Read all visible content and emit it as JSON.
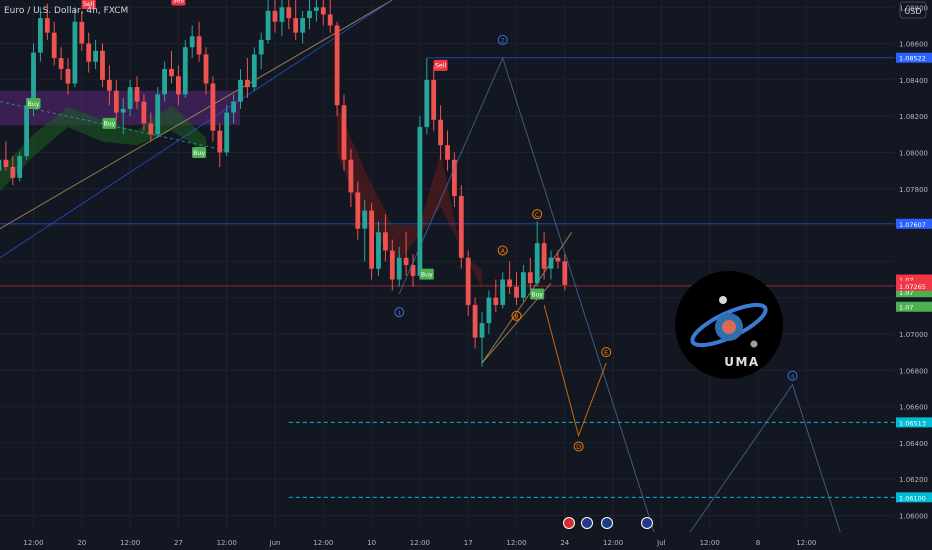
{
  "header": {
    "symbol": "Euro / U.S. Dollar, 4h, FXCM",
    "currency": "USD"
  },
  "colors": {
    "bg": "#131722",
    "up": "#26a69a",
    "down": "#ef5350",
    "wave_blue": "#2962ff",
    "wave_orange": "#f57c00",
    "buy": "#4caf50",
    "sell": "#f23645",
    "purple_zone": "#6a2c8e"
  },
  "chart_data": {
    "type": "candlestick",
    "title": "",
    "xlabel": "",
    "ylabel": "",
    "ylim": [
      1.0592,
      1.0884
    ],
    "y_ticks": [
      1.088,
      1.086,
      1.084,
      1.082,
      1.08,
      1.078,
      1.076,
      1.074,
      1.072,
      1.07,
      1.068,
      1.066,
      1.064,
      1.062,
      1.06
    ],
    "y_tick_labels": [
      "1.08800",
      "1.08600",
      "1.08400",
      "1.08200",
      "1.08000",
      "1.07800",
      "",
      "",
      "",
      "1.07000",
      "1.06800",
      "1.06600",
      "1.06400",
      "1.06200",
      "1.06000"
    ],
    "x_ticks": [
      {
        "i": 5,
        "label": "12:00"
      },
      {
        "i": 12,
        "label": "20"
      },
      {
        "i": 19,
        "label": "12:00"
      },
      {
        "i": 26,
        "label": "27"
      },
      {
        "i": 33,
        "label": "12:00"
      },
      {
        "i": 40,
        "label": "Jun"
      },
      {
        "i": 47,
        "label": "12:00"
      },
      {
        "i": 54,
        "label": "10"
      },
      {
        "i": 61,
        "label": "12:00"
      },
      {
        "i": 68,
        "label": "17"
      },
      {
        "i": 75,
        "label": "12:00"
      },
      {
        "i": 82,
        "label": "24"
      },
      {
        "i": 89,
        "label": "12:00"
      },
      {
        "i": 96,
        "label": "Jul"
      },
      {
        "i": 103,
        "label": "12:00"
      },
      {
        "i": 110,
        "label": "8"
      },
      {
        "i": 117,
        "label": "12:00"
      }
    ],
    "price_tags": [
      {
        "value": 1.08522,
        "label": "1.08522",
        "color": "#2962ff"
      },
      {
        "value": 1.07607,
        "label": "1.07607",
        "color": "#2962ff"
      },
      {
        "value": 1.073,
        "label": "1.07",
        "color": "#f23645"
      },
      {
        "value": 1.0723,
        "label": "1.07",
        "color": "#4caf50"
      },
      {
        "value": 1.07265,
        "label": "1.07265",
        "color": "#f23645"
      },
      {
        "value": 1.0715,
        "label": "1.07",
        "color": "#4caf50"
      },
      {
        "value": 1.06513,
        "label": "1.06513",
        "color": "#00bcd4"
      },
      {
        "value": 1.061,
        "label": "1.06100",
        "color": "#00bcd4"
      }
    ],
    "candles": [
      [
        1.079,
        1.08,
        1.0782,
        1.0796
      ],
      [
        1.0796,
        1.0806,
        1.079,
        1.0792
      ],
      [
        1.0792,
        1.0798,
        1.0782,
        1.0786
      ],
      [
        1.0786,
        1.08,
        1.0784,
        1.0798
      ],
      [
        1.0798,
        1.083,
        1.0796,
        1.0826
      ],
      [
        1.0826,
        1.086,
        1.082,
        1.0855
      ],
      [
        1.0855,
        1.088,
        1.085,
        1.0874
      ],
      [
        1.0874,
        1.0882,
        1.0862,
        1.0866
      ],
      [
        1.0866,
        1.0872,
        1.0848,
        1.0852
      ],
      [
        1.0852,
        1.0858,
        1.084,
        1.0846
      ],
      [
        1.0846,
        1.0852,
        1.0832,
        1.0838
      ],
      [
        1.0838,
        1.088,
        1.0836,
        1.0872
      ],
      [
        1.0872,
        1.0878,
        1.0856,
        1.086
      ],
      [
        1.086,
        1.0866,
        1.0844,
        1.085
      ],
      [
        1.085,
        1.0862,
        1.0846,
        1.0856
      ],
      [
        1.0856,
        1.086,
        1.0836,
        1.084
      ],
      [
        1.084,
        1.0848,
        1.0826,
        1.0834
      ],
      [
        1.0834,
        1.084,
        1.0818,
        1.0822
      ],
      [
        1.0822,
        1.083,
        1.081,
        1.0824
      ],
      [
        1.0824,
        1.084,
        1.082,
        1.0836
      ],
      [
        1.0836,
        1.0842,
        1.0824,
        1.0828
      ],
      [
        1.0828,
        1.0832,
        1.0812,
        1.0816
      ],
      [
        1.0816,
        1.0822,
        1.0806,
        1.081
      ],
      [
        1.081,
        1.0836,
        1.0808,
        1.0832
      ],
      [
        1.0832,
        1.085,
        1.0828,
        1.0846
      ],
      [
        1.0846,
        1.0856,
        1.0838,
        1.0842
      ],
      [
        1.0842,
        1.0848,
        1.0826,
        1.0832
      ],
      [
        1.0832,
        1.0862,
        1.083,
        1.0858
      ],
      [
        1.0858,
        1.087,
        1.0852,
        1.0864
      ],
      [
        1.0864,
        1.0872,
        1.085,
        1.0854
      ],
      [
        1.0854,
        1.0858,
        1.0832,
        1.0838
      ],
      [
        1.0838,
        1.0842,
        1.0806,
        1.0812
      ],
      [
        1.0812,
        1.0816,
        1.0792,
        1.08
      ],
      [
        1.08,
        1.0826,
        1.0798,
        1.0822
      ],
      [
        1.0822,
        1.0832,
        1.0816,
        1.0828
      ],
      [
        1.0828,
        1.0846,
        1.0824,
        1.084
      ],
      [
        1.084,
        1.0852,
        1.083,
        1.0836
      ],
      [
        1.0836,
        1.0858,
        1.0834,
        1.0854
      ],
      [
        1.0854,
        1.0866,
        1.0846,
        1.0862
      ],
      [
        1.0862,
        1.0884,
        1.086,
        1.0878
      ],
      [
        1.0878,
        1.0884,
        1.0866,
        1.0872
      ],
      [
        1.0872,
        1.0884,
        1.0864,
        1.088
      ],
      [
        1.088,
        1.0884,
        1.0868,
        1.0874
      ],
      [
        1.0874,
        1.0884,
        1.0862,
        1.0866
      ],
      [
        1.0866,
        1.0878,
        1.086,
        1.0874
      ],
      [
        1.0874,
        1.0884,
        1.0868,
        1.0878
      ],
      [
        1.0878,
        1.0884,
        1.0872,
        1.088
      ],
      [
        1.088,
        1.0884,
        1.087,
        1.0876
      ],
      [
        1.0876,
        1.0884,
        1.0866,
        1.087
      ],
      [
        1.087,
        1.0872,
        1.082,
        1.0826
      ],
      [
        1.0826,
        1.0832,
        1.079,
        1.0796
      ],
      [
        1.0796,
        1.0802,
        1.077,
        1.0778
      ],
      [
        1.0778,
        1.0784,
        1.0752,
        1.0758
      ],
      [
        1.0758,
        1.0774,
        1.074,
        1.0768
      ],
      [
        1.0768,
        1.0772,
        1.073,
        1.0736
      ],
      [
        1.0736,
        1.0762,
        1.0732,
        1.0756
      ],
      [
        1.0756,
        1.0766,
        1.074,
        1.0746
      ],
      [
        1.0746,
        1.0752,
        1.0724,
        1.073
      ],
      [
        1.073,
        1.0748,
        1.0726,
        1.0742
      ],
      [
        1.0742,
        1.0756,
        1.0732,
        1.0738
      ],
      [
        1.0738,
        1.0744,
        1.0726,
        1.0732
      ],
      [
        1.0732,
        1.082,
        1.073,
        1.0814
      ],
      [
        1.0814,
        1.0852,
        1.081,
        1.084
      ],
      [
        1.084,
        1.0848,
        1.0812,
        1.0818
      ],
      [
        1.0818,
        1.0826,
        1.0796,
        1.0804
      ],
      [
        1.0804,
        1.0812,
        1.079,
        1.0796
      ],
      [
        1.0796,
        1.08,
        1.077,
        1.0776
      ],
      [
        1.0776,
        1.0782,
        1.0736,
        1.0742
      ],
      [
        1.0742,
        1.0746,
        1.071,
        1.0716
      ],
      [
        1.0716,
        1.072,
        1.0692,
        1.0698
      ],
      [
        1.0698,
        1.0712,
        1.0682,
        1.0706
      ],
      [
        1.0706,
        1.0724,
        1.07,
        1.072
      ],
      [
        1.072,
        1.073,
        1.0712,
        1.0716
      ],
      [
        1.0716,
        1.0734,
        1.0714,
        1.073
      ],
      [
        1.073,
        1.074,
        1.0722,
        1.0726
      ],
      [
        1.0726,
        1.0734,
        1.0716,
        1.072
      ],
      [
        1.072,
        1.0738,
        1.0718,
        1.0734
      ],
      [
        1.0734,
        1.0742,
        1.0724,
        1.0728
      ],
      [
        1.0728,
        1.0762,
        1.0726,
        1.075
      ],
      [
        1.075,
        1.0756,
        1.073,
        1.0736
      ],
      [
        1.0736,
        1.0746,
        1.073,
        1.0742
      ],
      [
        1.0742,
        1.0746,
        1.0736,
        1.074
      ],
      [
        1.074,
        1.0744,
        1.0724,
        1.0727
      ]
    ],
    "signals": [
      {
        "type": "Sell",
        "i": 13,
        "price": 1.0882
      },
      {
        "type": "Sell",
        "i": 26,
        "price": 1.0884
      },
      {
        "type": "Buy",
        "i": 5,
        "price": 1.0827
      },
      {
        "type": "Buy",
        "i": 16,
        "price": 1.0816
      },
      {
        "type": "Buy",
        "i": 29,
        "price": 1.08
      },
      {
        "type": "Sell",
        "i": 64,
        "price": 1.0848
      },
      {
        "type": "Buy",
        "i": 62,
        "price": 1.0733
      },
      {
        "type": "Buy",
        "i": 78,
        "price": 1.0722
      }
    ],
    "wave_labels_blue": [
      {
        "label": "1",
        "i": 58,
        "price": 1.0712
      },
      {
        "label": "2",
        "i": 73,
        "price": 1.0862
      },
      {
        "label": "4",
        "i": 115,
        "price": 1.0677
      }
    ],
    "wave_labels_orange": [
      {
        "label": "A",
        "i": 73,
        "price": 1.0746
      },
      {
        "label": "B",
        "i": 75,
        "price": 1.071
      },
      {
        "label": "C",
        "i": 78,
        "price": 1.0766
      },
      {
        "label": "D",
        "i": 84,
        "price": 1.0638
      },
      {
        "label": "E",
        "i": 88,
        "price": 1.069
      }
    ]
  },
  "logo": {
    "text": "UMA"
  }
}
